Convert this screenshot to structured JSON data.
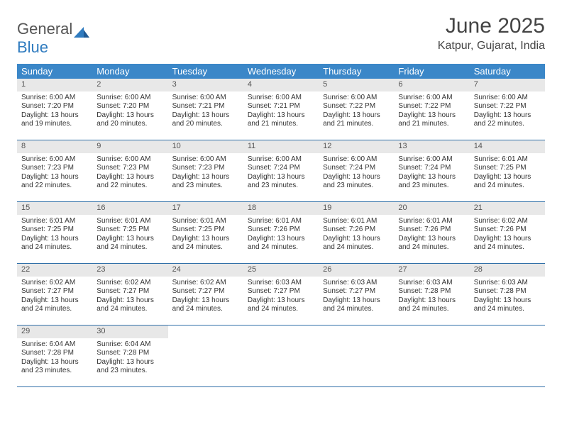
{
  "logo": {
    "text1": "General",
    "text2": "Blue"
  },
  "title": "June 2025",
  "location": "Katpur, Gujarat, India",
  "colors": {
    "header_bg": "#3b87c8",
    "header_text": "#ffffff",
    "daynum_bg": "#e8e8e8",
    "week_border": "#2f6fa8",
    "logo_gray": "#555555",
    "logo_blue": "#2f7bbf"
  },
  "weekdays": [
    "Sunday",
    "Monday",
    "Tuesday",
    "Wednesday",
    "Thursday",
    "Friday",
    "Saturday"
  ],
  "weeks": [
    [
      {
        "n": "1",
        "sr": "6:00 AM",
        "ss": "7:20 PM",
        "dl": "13 hours and 19 minutes."
      },
      {
        "n": "2",
        "sr": "6:00 AM",
        "ss": "7:20 PM",
        "dl": "13 hours and 20 minutes."
      },
      {
        "n": "3",
        "sr": "6:00 AM",
        "ss": "7:21 PM",
        "dl": "13 hours and 20 minutes."
      },
      {
        "n": "4",
        "sr": "6:00 AM",
        "ss": "7:21 PM",
        "dl": "13 hours and 21 minutes."
      },
      {
        "n": "5",
        "sr": "6:00 AM",
        "ss": "7:22 PM",
        "dl": "13 hours and 21 minutes."
      },
      {
        "n": "6",
        "sr": "6:00 AM",
        "ss": "7:22 PM",
        "dl": "13 hours and 21 minutes."
      },
      {
        "n": "7",
        "sr": "6:00 AM",
        "ss": "7:22 PM",
        "dl": "13 hours and 22 minutes."
      }
    ],
    [
      {
        "n": "8",
        "sr": "6:00 AM",
        "ss": "7:23 PM",
        "dl": "13 hours and 22 minutes."
      },
      {
        "n": "9",
        "sr": "6:00 AM",
        "ss": "7:23 PM",
        "dl": "13 hours and 22 minutes."
      },
      {
        "n": "10",
        "sr": "6:00 AM",
        "ss": "7:23 PM",
        "dl": "13 hours and 23 minutes."
      },
      {
        "n": "11",
        "sr": "6:00 AM",
        "ss": "7:24 PM",
        "dl": "13 hours and 23 minutes."
      },
      {
        "n": "12",
        "sr": "6:00 AM",
        "ss": "7:24 PM",
        "dl": "13 hours and 23 minutes."
      },
      {
        "n": "13",
        "sr": "6:00 AM",
        "ss": "7:24 PM",
        "dl": "13 hours and 23 minutes."
      },
      {
        "n": "14",
        "sr": "6:01 AM",
        "ss": "7:25 PM",
        "dl": "13 hours and 24 minutes."
      }
    ],
    [
      {
        "n": "15",
        "sr": "6:01 AM",
        "ss": "7:25 PM",
        "dl": "13 hours and 24 minutes."
      },
      {
        "n": "16",
        "sr": "6:01 AM",
        "ss": "7:25 PM",
        "dl": "13 hours and 24 minutes."
      },
      {
        "n": "17",
        "sr": "6:01 AM",
        "ss": "7:25 PM",
        "dl": "13 hours and 24 minutes."
      },
      {
        "n": "18",
        "sr": "6:01 AM",
        "ss": "7:26 PM",
        "dl": "13 hours and 24 minutes."
      },
      {
        "n": "19",
        "sr": "6:01 AM",
        "ss": "7:26 PM",
        "dl": "13 hours and 24 minutes."
      },
      {
        "n": "20",
        "sr": "6:01 AM",
        "ss": "7:26 PM",
        "dl": "13 hours and 24 minutes."
      },
      {
        "n": "21",
        "sr": "6:02 AM",
        "ss": "7:26 PM",
        "dl": "13 hours and 24 minutes."
      }
    ],
    [
      {
        "n": "22",
        "sr": "6:02 AM",
        "ss": "7:27 PM",
        "dl": "13 hours and 24 minutes."
      },
      {
        "n": "23",
        "sr": "6:02 AM",
        "ss": "7:27 PM",
        "dl": "13 hours and 24 minutes."
      },
      {
        "n": "24",
        "sr": "6:02 AM",
        "ss": "7:27 PM",
        "dl": "13 hours and 24 minutes."
      },
      {
        "n": "25",
        "sr": "6:03 AM",
        "ss": "7:27 PM",
        "dl": "13 hours and 24 minutes."
      },
      {
        "n": "26",
        "sr": "6:03 AM",
        "ss": "7:27 PM",
        "dl": "13 hours and 24 minutes."
      },
      {
        "n": "27",
        "sr": "6:03 AM",
        "ss": "7:28 PM",
        "dl": "13 hours and 24 minutes."
      },
      {
        "n": "28",
        "sr": "6:03 AM",
        "ss": "7:28 PM",
        "dl": "13 hours and 24 minutes."
      }
    ],
    [
      {
        "n": "29",
        "sr": "6:04 AM",
        "ss": "7:28 PM",
        "dl": "13 hours and 23 minutes."
      },
      {
        "n": "30",
        "sr": "6:04 AM",
        "ss": "7:28 PM",
        "dl": "13 hours and 23 minutes."
      },
      null,
      null,
      null,
      null,
      null
    ]
  ],
  "labels": {
    "sunrise": "Sunrise: ",
    "sunset": "Sunset: ",
    "daylight": "Daylight: "
  }
}
